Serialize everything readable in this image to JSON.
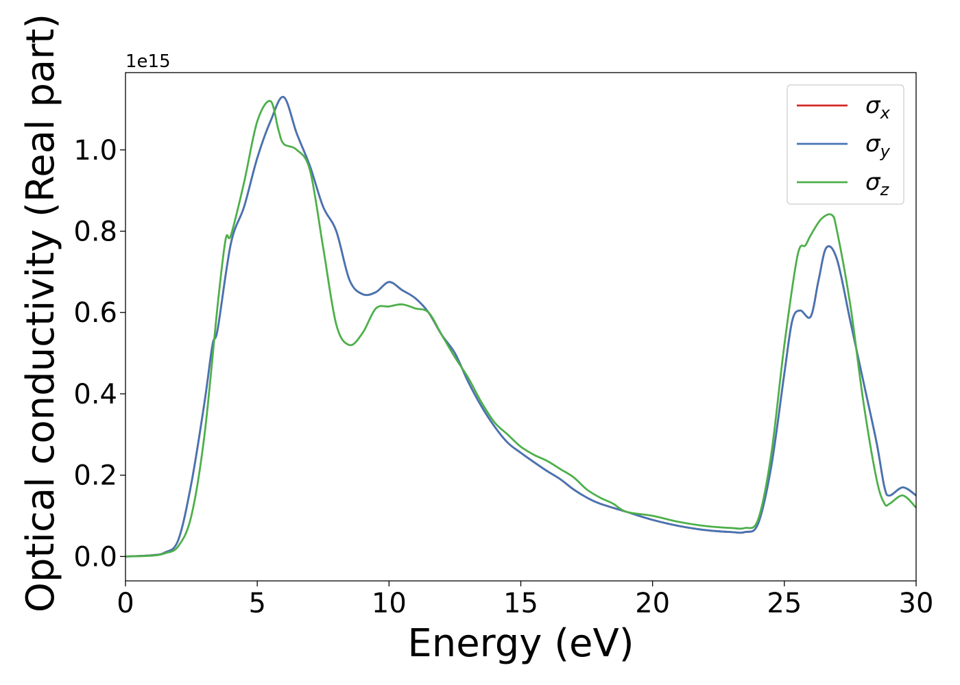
{
  "chart_data": {
    "type": "line",
    "xlabel": "Energy (eV)",
    "ylabel": "Optical conductivity (Real part)",
    "y_offset_text": "1e15",
    "y_multiplier": 1000000000000000.0,
    "xlim": [
      0,
      30
    ],
    "ylim": [
      -0.06,
      1.19
    ],
    "xticks": [
      0,
      5,
      10,
      15,
      20,
      25,
      30
    ],
    "xtick_labels": [
      "0",
      "5",
      "10",
      "15",
      "20",
      "25",
      "30"
    ],
    "yticks": [
      0.0,
      0.2,
      0.4,
      0.6,
      0.8,
      1.0
    ],
    "ytick_labels": [
      "0.0",
      "0.2",
      "0.4",
      "0.6",
      "0.8",
      "1.0"
    ],
    "grid": false,
    "legend_position": "top-right",
    "series": [
      {
        "name": "σ",
        "subscript": "x",
        "color": "#d62728",
        "x": [
          0,
          1,
          1.5,
          2,
          2.5,
          3,
          3.3,
          3.5,
          4,
          4.5,
          5,
          5.5,
          6,
          6.5,
          7,
          7.5,
          8,
          8.5,
          9,
          9.5,
          10,
          10.5,
          11,
          11.5,
          12,
          12.5,
          13,
          13.5,
          14,
          14.5,
          15,
          15.5,
          16,
          16.5,
          17,
          17.5,
          18,
          19,
          20,
          21,
          22,
          23,
          23.5,
          24,
          24.5,
          25,
          25.3,
          25.6,
          26,
          26.3,
          26.6,
          27,
          27.5,
          28,
          28.5,
          28.8,
          29,
          29.5,
          30
        ],
        "y": [
          0.0,
          0.003,
          0.01,
          0.04,
          0.18,
          0.38,
          0.52,
          0.56,
          0.77,
          0.86,
          0.98,
          1.07,
          1.13,
          1.04,
          0.96,
          0.86,
          0.8,
          0.68,
          0.645,
          0.65,
          0.675,
          0.655,
          0.635,
          0.6,
          0.545,
          0.5,
          0.43,
          0.37,
          0.32,
          0.28,
          0.255,
          0.232,
          0.21,
          0.19,
          0.165,
          0.145,
          0.13,
          0.11,
          0.09,
          0.075,
          0.065,
          0.06,
          0.06,
          0.08,
          0.22,
          0.45,
          0.58,
          0.605,
          0.59,
          0.68,
          0.76,
          0.73,
          0.58,
          0.43,
          0.28,
          0.17,
          0.15,
          0.17,
          0.15
        ]
      },
      {
        "name": "σ",
        "subscript": "y",
        "color": "#4575b4",
        "x": [
          0,
          1,
          1.5,
          2,
          2.5,
          3,
          3.3,
          3.5,
          4,
          4.5,
          5,
          5.5,
          6,
          6.5,
          7,
          7.5,
          8,
          8.5,
          9,
          9.5,
          10,
          10.5,
          11,
          11.5,
          12,
          12.5,
          13,
          13.5,
          14,
          14.5,
          15,
          15.5,
          16,
          16.5,
          17,
          17.5,
          18,
          19,
          20,
          21,
          22,
          23,
          23.5,
          24,
          24.5,
          25,
          25.3,
          25.6,
          26,
          26.3,
          26.6,
          27,
          27.5,
          28,
          28.5,
          28.8,
          29,
          29.5,
          30
        ],
        "y": [
          0.0,
          0.003,
          0.01,
          0.04,
          0.18,
          0.38,
          0.52,
          0.56,
          0.77,
          0.86,
          0.98,
          1.07,
          1.13,
          1.04,
          0.96,
          0.86,
          0.8,
          0.68,
          0.645,
          0.65,
          0.675,
          0.655,
          0.635,
          0.6,
          0.545,
          0.5,
          0.43,
          0.37,
          0.32,
          0.28,
          0.255,
          0.232,
          0.21,
          0.19,
          0.165,
          0.145,
          0.13,
          0.11,
          0.09,
          0.075,
          0.065,
          0.06,
          0.06,
          0.08,
          0.22,
          0.45,
          0.58,
          0.605,
          0.59,
          0.68,
          0.76,
          0.73,
          0.58,
          0.43,
          0.28,
          0.17,
          0.15,
          0.17,
          0.15
        ]
      },
      {
        "name": "σ",
        "subscript": "z",
        "color": "#4daf4a",
        "x": [
          0,
          1,
          1.5,
          2,
          2.5,
          3,
          3.5,
          3.8,
          4,
          4.5,
          5,
          5.5,
          5.8,
          6,
          6.5,
          7,
          7.5,
          8,
          8.5,
          9,
          9.5,
          10,
          10.5,
          11,
          11.5,
          12,
          12.5,
          13,
          13.5,
          14,
          14.5,
          15,
          15.5,
          16,
          16.5,
          17,
          17.5,
          18,
          18.5,
          19,
          20,
          21,
          22,
          23,
          23.5,
          24,
          24.5,
          25,
          25.5,
          25.8,
          26,
          26.4,
          26.8,
          27,
          27.5,
          28,
          28.5,
          28.8,
          29,
          29.5,
          30
        ],
        "y": [
          0.0,
          0.002,
          0.008,
          0.025,
          0.1,
          0.3,
          0.62,
          0.78,
          0.79,
          0.92,
          1.07,
          1.12,
          1.05,
          1.015,
          1.0,
          0.95,
          0.76,
          0.57,
          0.52,
          0.55,
          0.61,
          0.615,
          0.62,
          0.61,
          0.6,
          0.545,
          0.49,
          0.44,
          0.38,
          0.33,
          0.3,
          0.27,
          0.25,
          0.235,
          0.215,
          0.195,
          0.165,
          0.145,
          0.13,
          0.11,
          0.1,
          0.085,
          0.075,
          0.07,
          0.07,
          0.09,
          0.25,
          0.52,
          0.74,
          0.765,
          0.79,
          0.83,
          0.84,
          0.8,
          0.62,
          0.38,
          0.19,
          0.13,
          0.13,
          0.15,
          0.12
        ]
      }
    ]
  }
}
